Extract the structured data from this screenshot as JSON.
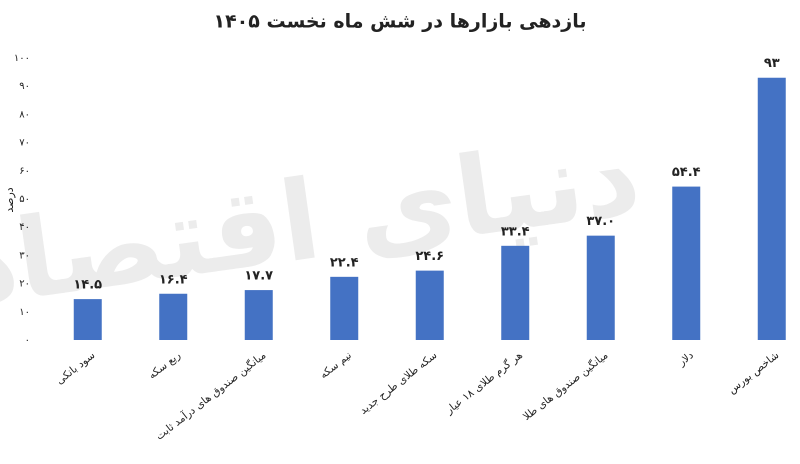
{
  "chart_data": {
    "type": "bar",
    "title": "بازدهی بازارها در شش ماه نخست ۱۴۰۵",
    "y_label": "درصد",
    "watermark": "دنیای اقتصاد",
    "categories": [
      "سود بانکی",
      "ربع سکه",
      "میانگین صندوق های درآمد ثابت",
      "نیم سکه",
      "سکه طلای طرح جدید",
      "هر گرم طلای ۱۸ عیار",
      "میانگین صندوق های طلا",
      "دلار",
      "شاخص بورس"
    ],
    "values": [
      14.5,
      16.4,
      17.7,
      22.4,
      24.6,
      33.4,
      37.0,
      54.4,
      93
    ],
    "value_labels": [
      "۱۴.۵",
      "۱۶.۴",
      "۱۷.۷",
      "۲۲.۴",
      "۲۴.۶",
      "۳۳.۴",
      "۳۷.۰",
      "۵۴.۴",
      "۹۳"
    ],
    "color": "#4472c4",
    "ylim": [
      0,
      100
    ],
    "yticks": [
      {
        "value": 0,
        "label": "۰"
      },
      {
        "value": 10,
        "label": "۱۰"
      },
      {
        "value": 20,
        "label": "۲۰"
      },
      {
        "value": 30,
        "label": "۳۰"
      },
      {
        "value": 40,
        "label": "۴۰"
      },
      {
        "value": 50,
        "label": "۵۰"
      },
      {
        "value": 60,
        "label": "۶۰"
      },
      {
        "value": 70,
        "label": "۷۰"
      },
      {
        "value": 80,
        "label": "۸۰"
      },
      {
        "value": 90,
        "label": "۹۰"
      },
      {
        "value": 100,
        "label": "۱۰۰"
      }
    ],
    "grid": false
  }
}
